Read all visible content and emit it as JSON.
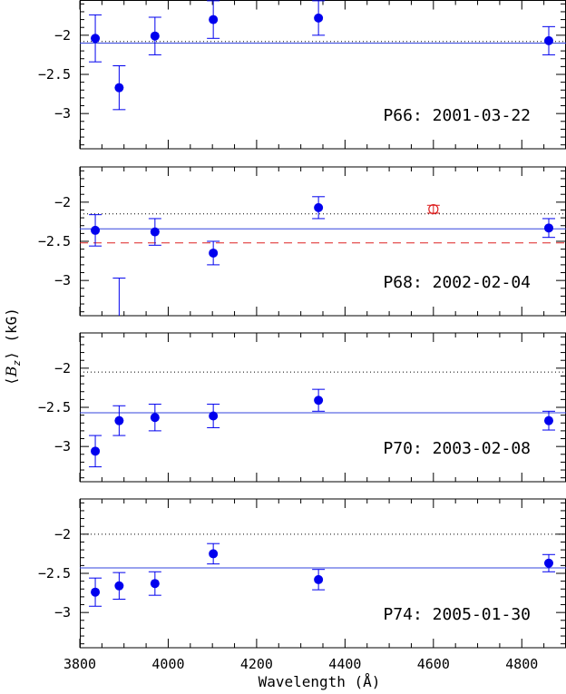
{
  "chart_data": {
    "type": "scatter",
    "xlabel": "Wavelength (Å)",
    "ylabel_symbol": "B",
    "ylabel_subscript": "z",
    "ylabel_unit": "(kG)",
    "xlim": [
      3800,
      4900
    ],
    "ylim": [
      -3.45,
      -1.55
    ],
    "x_ticks": [
      3800,
      4000,
      4200,
      4400,
      4600,
      4800
    ],
    "y_ticks": [
      -2,
      -2.5,
      -3
    ],
    "colors": {
      "points": "#0000ee",
      "fit_line": "#3344dd",
      "reference": "#dd2222",
      "frame": "#000000"
    },
    "panels": [
      {
        "label": "P66: 2001-03-22",
        "solid_line": -2.1,
        "dotted_line": -2.08,
        "series": [
          {
            "marker": "filled-circle",
            "color": "#0000ee",
            "points": [
              {
                "x": 3835,
                "y": -2.04,
                "yerr_low": 0.3,
                "yerr_high": 0.3
              },
              {
                "x": 3889,
                "y": -2.67,
                "yerr_low": 0.28,
                "yerr_high": 0.28
              },
              {
                "x": 3970,
                "y": -2.01,
                "yerr_low": 0.24,
                "yerr_high": 0.24
              },
              {
                "x": 4102,
                "y": -1.8,
                "yerr_low": 0.24,
                "yerr_high": 0.24
              },
              {
                "x": 4340,
                "y": -1.78,
                "yerr_low": 0.22,
                "yerr_high": 0.22
              },
              {
                "x": 4861,
                "y": -2.07,
                "yerr_low": 0.18,
                "yerr_high": 0.18
              }
            ]
          }
        ]
      },
      {
        "label": "P68: 2002-02-04",
        "solid_line": -2.34,
        "dotted_line": -2.15,
        "dashed_line": -2.52,
        "series": [
          {
            "marker": "filled-circle",
            "color": "#0000ee",
            "points": [
              {
                "x": 3835,
                "y": -2.36,
                "yerr_low": 0.2,
                "yerr_high": 0.2
              },
              {
                "x": 3970,
                "y": -2.38,
                "yerr_low": 0.17,
                "yerr_high": 0.17
              },
              {
                "x": 4102,
                "y": -2.65,
                "yerr_low": 0.15,
                "yerr_high": 0.15
              },
              {
                "x": 4340,
                "y": -2.07,
                "yerr_low": 0.14,
                "yerr_high": 0.14
              },
              {
                "x": 4861,
                "y": -2.33,
                "yerr_low": 0.12,
                "yerr_high": 0.12
              }
            ]
          },
          {
            "marker": "error-bar-only",
            "color": "#0000ee",
            "points": [
              {
                "x": 3889,
                "y": -3.45,
                "yerr_low": 0.0,
                "yerr_high": 0.48
              }
            ]
          },
          {
            "marker": "open-circle",
            "color": "#dd2222",
            "points": [
              {
                "x": 4600,
                "y": -2.09,
                "yerr_low": 0.05,
                "yerr_high": 0.05
              }
            ]
          }
        ]
      },
      {
        "label": "P70: 2003-02-08",
        "solid_line": -2.57,
        "dotted_line": -2.05,
        "series": [
          {
            "marker": "filled-circle",
            "color": "#0000ee",
            "points": [
              {
                "x": 3835,
                "y": -3.06,
                "yerr_low": 0.2,
                "yerr_high": 0.2
              },
              {
                "x": 3889,
                "y": -2.67,
                "yerr_low": 0.19,
                "yerr_high": 0.19
              },
              {
                "x": 3970,
                "y": -2.63,
                "yerr_low": 0.17,
                "yerr_high": 0.17
              },
              {
                "x": 4102,
                "y": -2.61,
                "yerr_low": 0.15,
                "yerr_high": 0.15
              },
              {
                "x": 4340,
                "y": -2.41,
                "yerr_low": 0.14,
                "yerr_high": 0.14
              },
              {
                "x": 4861,
                "y": -2.67,
                "yerr_low": 0.12,
                "yerr_high": 0.12
              }
            ]
          }
        ]
      },
      {
        "label": "P74: 2005-01-30",
        "solid_line": -2.43,
        "dotted_line": -2.0,
        "series": [
          {
            "marker": "filled-circle",
            "color": "#0000ee",
            "points": [
              {
                "x": 3835,
                "y": -2.74,
                "yerr_low": 0.18,
                "yerr_high": 0.18
              },
              {
                "x": 3889,
                "y": -2.66,
                "yerr_low": 0.17,
                "yerr_high": 0.17
              },
              {
                "x": 3970,
                "y": -2.63,
                "yerr_low": 0.15,
                "yerr_high": 0.15
              },
              {
                "x": 4102,
                "y": -2.25,
                "yerr_low": 0.13,
                "yerr_high": 0.13
              },
              {
                "x": 4340,
                "y": -2.58,
                "yerr_low": 0.13,
                "yerr_high": 0.13
              },
              {
                "x": 4861,
                "y": -2.37,
                "yerr_low": 0.11,
                "yerr_high": 0.11
              }
            ]
          }
        ]
      }
    ]
  }
}
